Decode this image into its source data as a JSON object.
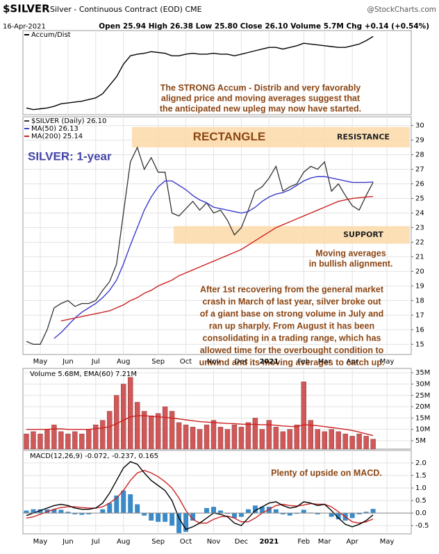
{
  "header": {
    "symbol": "$SILVER",
    "description": "Silver - Continuous Contract (EOD) CME",
    "source": "@StockCharts.com",
    "date": "16-Apr-2021",
    "quote": "Open 25.94 High 26.38 Low 25.80 Close 26.10 Volume 5.7M Chg +0.14 (+0.54%)"
  },
  "chart_data": [
    {
      "type": "line",
      "ylim": [
        0,
        100
      ],
      "grid": true,
      "series": [
        {
          "name": "Accum/Dist",
          "color": "#000000",
          "values": [
            8,
            6,
            7,
            8,
            10,
            13,
            14,
            15,
            16,
            18,
            20,
            25,
            35,
            45,
            60,
            70,
            72,
            73,
            75,
            74,
            73,
            70,
            70,
            72,
            73,
            72,
            72,
            73,
            72,
            72,
            70,
            72,
            74,
            76,
            78,
            80,
            80,
            78,
            80,
            82,
            85,
            84,
            83,
            82,
            81,
            80,
            80,
            82,
            84,
            88,
            93,
            null,
            null,
            null,
            null,
            null
          ]
        }
      ],
      "annotations": [
        {
          "color": "#8b4513",
          "lines": [
            "The STRONG Accum - Distrib and very favorably",
            "aligned price and moving averages suggest that",
            "the anticipated new upleg may now have started."
          ]
        }
      ]
    },
    {
      "type": "line",
      "title": "SILVER: 1-year",
      "ylim": [
        14.3,
        30.6
      ],
      "yticks": [
        15,
        16,
        17,
        18,
        19,
        20,
        21,
        22,
        23,
        24,
        25,
        26,
        27,
        28,
        29,
        30
      ],
      "grid": true,
      "categories": [
        null,
        null,
        "May",
        null,
        null,
        null,
        "Jun",
        null,
        null,
        null,
        "Jul",
        null,
        null,
        null,
        "Aug",
        null,
        null,
        null,
        null,
        "Sep",
        null,
        null,
        null,
        "Oct",
        null,
        null,
        null,
        "Nov",
        null,
        null,
        null,
        "Dec",
        null,
        null,
        null,
        "2021",
        null,
        null,
        null,
        null,
        "Feb",
        null,
        null,
        "Mar",
        null,
        null,
        null,
        "Apr",
        null,
        null,
        null,
        null,
        "May",
        null,
        null,
        null
      ],
      "series": [
        {
          "name": "$SILVER (Daily) 26.10",
          "color": "#333333",
          "values": [
            15.2,
            15.0,
            15.0,
            16.0,
            17.5,
            17.8,
            18.0,
            17.6,
            17.8,
            17.8,
            18.0,
            18.7,
            19.3,
            20.5,
            24.0,
            27.5,
            28.5,
            27.0,
            27.8,
            26.8,
            26.8,
            24.0,
            23.8,
            24.3,
            24.8,
            24.2,
            24.7,
            24.0,
            24.2,
            23.5,
            22.5,
            23.0,
            24.2,
            25.5,
            25.8,
            26.4,
            27.2,
            25.5,
            25.8,
            26.0,
            26.8,
            27.2,
            27.0,
            27.5,
            25.5,
            26.0,
            25.2,
            24.5,
            24.2,
            25.2,
            26.1,
            null,
            null,
            null,
            null,
            null
          ]
        },
        {
          "name": "MA(50) 26.13",
          "color": "#3a3acc",
          "values": [
            null,
            null,
            null,
            null,
            15.4,
            15.8,
            16.3,
            16.8,
            17.2,
            17.5,
            17.8,
            18.2,
            18.7,
            19.4,
            20.5,
            21.8,
            23.0,
            24.2,
            25.1,
            25.8,
            26.2,
            26.2,
            25.9,
            25.6,
            25.2,
            24.9,
            24.7,
            24.4,
            24.3,
            24.2,
            24.1,
            24.0,
            24.1,
            24.4,
            24.8,
            25.1,
            25.3,
            25.4,
            25.6,
            25.9,
            26.2,
            26.4,
            26.5,
            26.5,
            26.4,
            26.3,
            26.2,
            26.1,
            26.1,
            26.1,
            26.13,
            null,
            null,
            null,
            null,
            null
          ]
        },
        {
          "name": "MA(200) 25.14",
          "color": "#cc2222",
          "values": [
            null,
            null,
            null,
            null,
            null,
            16.6,
            16.7,
            16.8,
            16.9,
            17.0,
            17.1,
            17.2,
            17.3,
            17.5,
            17.7,
            18.0,
            18.2,
            18.5,
            18.7,
            19.0,
            19.2,
            19.4,
            19.7,
            19.9,
            20.1,
            20.3,
            20.5,
            20.7,
            20.9,
            21.1,
            21.3,
            21.5,
            21.8,
            22.1,
            22.4,
            22.7,
            23.0,
            23.2,
            23.4,
            23.6,
            23.8,
            24.0,
            24.2,
            24.4,
            24.6,
            24.8,
            24.9,
            25.0,
            25.05,
            25.1,
            25.14,
            null,
            null,
            null,
            null,
            null
          ]
        }
      ],
      "bands": [
        {
          "label": "RESISTANCE",
          "from": 28.5,
          "to": 29.9,
          "color": "#fbd9a8"
        },
        {
          "label": "SUPPORT",
          "from": 21.9,
          "to": 23.1,
          "color": "#fbd9a8"
        }
      ],
      "band_title": "RECTANGLE",
      "annotations": [
        {
          "color": "#8b4513",
          "lines": [
            "Moving averages",
            "in bullish alignment."
          ]
        },
        {
          "color": "#8b4513",
          "lines": [
            "After 1st recovering from the general market",
            "crash in March of last year, silver broke out",
            "of a giant base on strong volume in July and",
            "ran up sharply. From August it has been",
            "consolidating in a trading range, which has",
            "allowed time for the overbought condition to",
            "unwind and its moving averages to catch up."
          ]
        }
      ]
    },
    {
      "type": "bar",
      "legend": "Volume 5.68M, EMA(60) 7.21M",
      "ylim": [
        1.3,
        36.9
      ],
      "grid": true,
      "yticks": [
        {
          "value": 5,
          "label": "5M"
        },
        {
          "value": 10,
          "label": "10M"
        },
        {
          "value": 15,
          "label": "15M"
        },
        {
          "value": 20,
          "label": "20M"
        },
        {
          "value": 25,
          "label": "25M"
        },
        {
          "value": 30,
          "label": "30M"
        },
        {
          "value": 35,
          "label": "35M"
        }
      ],
      "series": [
        {
          "type": "bar",
          "color": "#d05858",
          "values": [
            8,
            9,
            8,
            10,
            12,
            9,
            8,
            9,
            8,
            10,
            12,
            14,
            18,
            25,
            30,
            33,
            22,
            18,
            16,
            17,
            20,
            18,
            13,
            12,
            11,
            10,
            12,
            14,
            11,
            10,
            12,
            11,
            13,
            15,
            10,
            14,
            11,
            9,
            10,
            12,
            31,
            14,
            10,
            9,
            10,
            9,
            8,
            7,
            8,
            7,
            5.68,
            null,
            null,
            null,
            null,
            null
          ]
        },
        {
          "type": "line",
          "color": "#cc2222",
          "values": [
            10,
            10,
            10,
            10,
            10.2,
            10.2,
            10,
            10,
            10,
            10,
            10.3,
            10.6,
            11.2,
            12.5,
            14,
            15.5,
            16,
            16,
            15.8,
            15.5,
            15.3,
            15,
            14.6,
            14.2,
            13.8,
            13.4,
            13.2,
            13,
            12.8,
            12.6,
            12.5,
            12.3,
            12.2,
            12.2,
            12,
            12,
            11.8,
            11.5,
            11.3,
            11.2,
            12,
            11.9,
            11.6,
            11.2,
            10.8,
            10.4,
            10,
            9.5,
            8.8,
            8,
            7.21,
            null,
            null,
            null,
            null,
            null
          ]
        }
      ]
    },
    {
      "type": "line",
      "legend": "MACD(12,26,9) -0.072, -0.237, 0.165",
      "ylim": [
        -0.83,
        2.5
      ],
      "grid": true,
      "yticks": [
        {
          "value": 2,
          "label": "2.0"
        },
        1.5,
        {
          "value": 1,
          "label": "1.0"
        },
        0.5,
        {
          "value": 0,
          "label": "0.0"
        },
        -0.5
      ],
      "series": [
        {
          "type": "bar",
          "color": "#3a8ac8",
          "values": [
            0.1,
            0.15,
            0.15,
            0.15,
            0.15,
            0.13,
            0.05,
            -0.05,
            -0.07,
            -0.05,
            0,
            0.15,
            0.4,
            0.7,
            0.9,
            0.75,
            0.35,
            -0.1,
            -0.3,
            -0.35,
            -0.35,
            -0.5,
            -0.8,
            -0.75,
            -0.3,
            0,
            0.2,
            0.25,
            0.1,
            -0.03,
            -0.2,
            -0.15,
            0.15,
            0.3,
            0.25,
            0.25,
            0.15,
            -0.05,
            -0.1,
            -0.03,
            0.13,
            0.02,
            -0.05,
            0,
            -0.15,
            -0.25,
            -0.3,
            -0.2,
            -0.05,
            0.05,
            0.165,
            null,
            null,
            null,
            null,
            null
          ]
        },
        {
          "type": "line",
          "color": "#cc2222",
          "values": [
            -0.2,
            -0.15,
            -0.05,
            0.05,
            0.15,
            0.22,
            0.25,
            0.25,
            0.22,
            0.2,
            0.2,
            0.25,
            0.4,
            0.6,
            0.9,
            1.3,
            1.6,
            1.7,
            1.6,
            1.45,
            1.25,
            1.0,
            0.6,
            0.1,
            -0.25,
            -0.4,
            -0.4,
            -0.25,
            -0.15,
            -0.12,
            -0.2,
            -0.35,
            -0.35,
            -0.2,
            0.0,
            0.15,
            0.3,
            0.35,
            0.3,
            0.28,
            0.32,
            0.38,
            0.35,
            0.35,
            0.25,
            0.05,
            -0.15,
            -0.35,
            -0.4,
            -0.35,
            -0.237,
            null,
            null,
            null,
            null,
            null
          ]
        },
        {
          "type": "line",
          "color": "#000000",
          "values": [
            -0.1,
            0.0,
            0.1,
            0.2,
            0.3,
            0.35,
            0.3,
            0.2,
            0.15,
            0.15,
            0.2,
            0.4,
            0.8,
            1.3,
            1.8,
            2.05,
            1.95,
            1.6,
            1.3,
            1.1,
            0.9,
            0.5,
            -0.2,
            -0.65,
            -0.55,
            -0.4,
            -0.2,
            0.0,
            -0.05,
            -0.15,
            -0.4,
            -0.5,
            -0.2,
            0.1,
            0.25,
            0.4,
            0.45,
            0.3,
            0.2,
            0.25,
            0.45,
            0.4,
            0.3,
            0.35,
            0.1,
            -0.2,
            -0.45,
            -0.55,
            -0.45,
            -0.3,
            -0.072,
            null,
            null,
            null,
            null,
            null
          ]
        }
      ],
      "annotations": [
        {
          "color": "#8b4513",
          "lines": [
            "Plenty of upside on MACD."
          ]
        }
      ]
    }
  ]
}
